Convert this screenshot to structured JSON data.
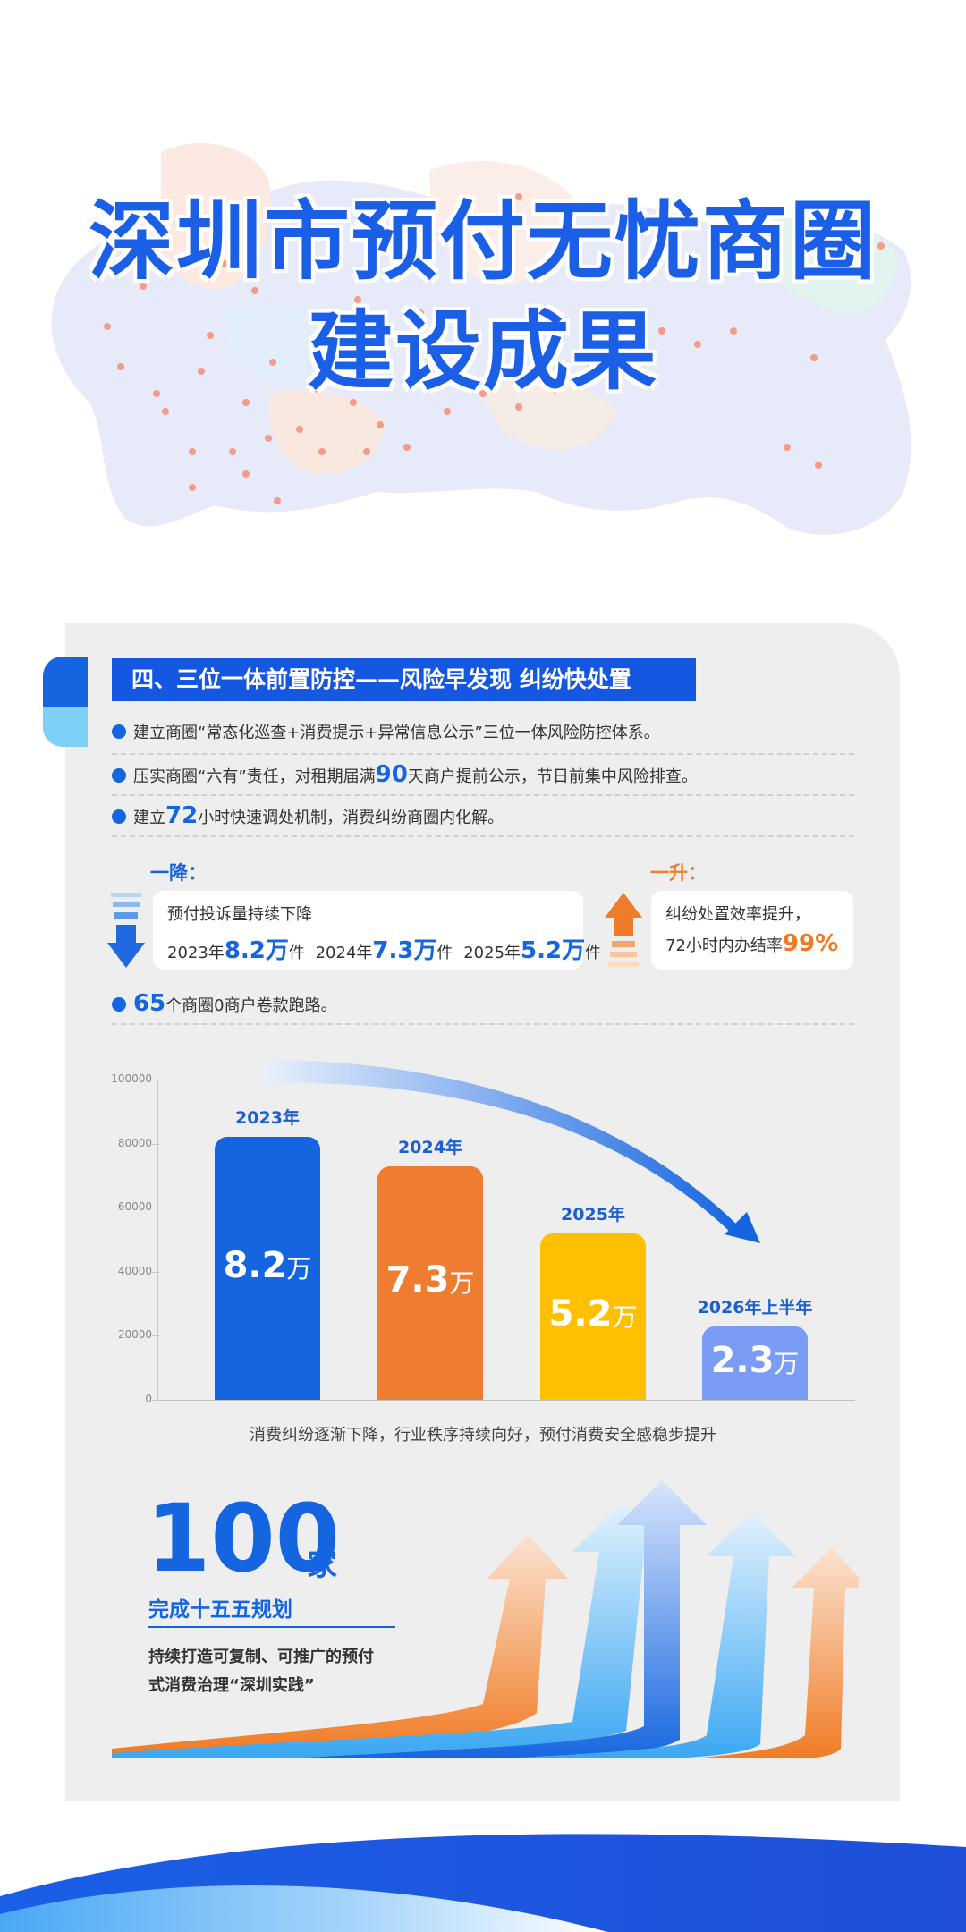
{
  "title": {
    "line1": "深圳市预付无忧商圈",
    "line2": "建设成果"
  },
  "section": {
    "heading": "四、三位一体前置防控——风险早发现 纠纷快处置"
  },
  "bullets": [
    {
      "pre": "建立商圈“常态化巡查+消费提示+异常信息公示”三位一体风险防控体系。"
    },
    {
      "pre": "压实商圈“六有”责任，对租期届满",
      "num": "90",
      "post": "天商户提前公示，节日前集中风险排查。"
    },
    {
      "pre": "建立",
      "num": "72",
      "post": "小时快速调处机制，消费纠纷商圈内化解。"
    }
  ],
  "decline": {
    "label": "一降：",
    "line1": "预付投诉量持续下降",
    "items": [
      {
        "year": "2023年",
        "num": "8.2万",
        "unit": "件"
      },
      {
        "year": "2024年",
        "num": "7.3万",
        "unit": "件"
      },
      {
        "year": "2025年",
        "num": "5.2万",
        "unit": "件"
      }
    ]
  },
  "rise": {
    "label": "一升：",
    "line1": "纠纷处置效率提升，",
    "line2": "72小时内办结率",
    "rate": "99%"
  },
  "runaway": {
    "num": "65",
    "post": "个商圈0商户卷款跑路。"
  },
  "chart_data": {
    "type": "bar",
    "categories": [
      "2023年",
      "2024年",
      "2025年",
      "2026年上半年"
    ],
    "values": [
      82000,
      73000,
      52000,
      23000
    ],
    "value_labels": [
      {
        "num": "8.2",
        "unit": "万"
      },
      {
        "num": "7.3",
        "unit": "万"
      },
      {
        "num": "5.2",
        "unit": "万"
      },
      {
        "num": "2.3",
        "unit": "万"
      }
    ],
    "colors": [
      "#1565e0",
      "#ee7d31",
      "#ffc000",
      "#7b9cf5"
    ],
    "yticks": [
      "0",
      "20000",
      "40000",
      "60000",
      "80000",
      "100000"
    ],
    "ylim": [
      0,
      100000
    ],
    "caption": "消费纠纷逐渐下降，行业秩序持续向好，预付消费安全感稳步提升"
  },
  "plan": {
    "num": "100",
    "unit": "家",
    "sub": "完成十五五规划",
    "desc1": "持续打造可复制、可推广的预付",
    "desc2": "式消费治理“深圳实践”"
  }
}
